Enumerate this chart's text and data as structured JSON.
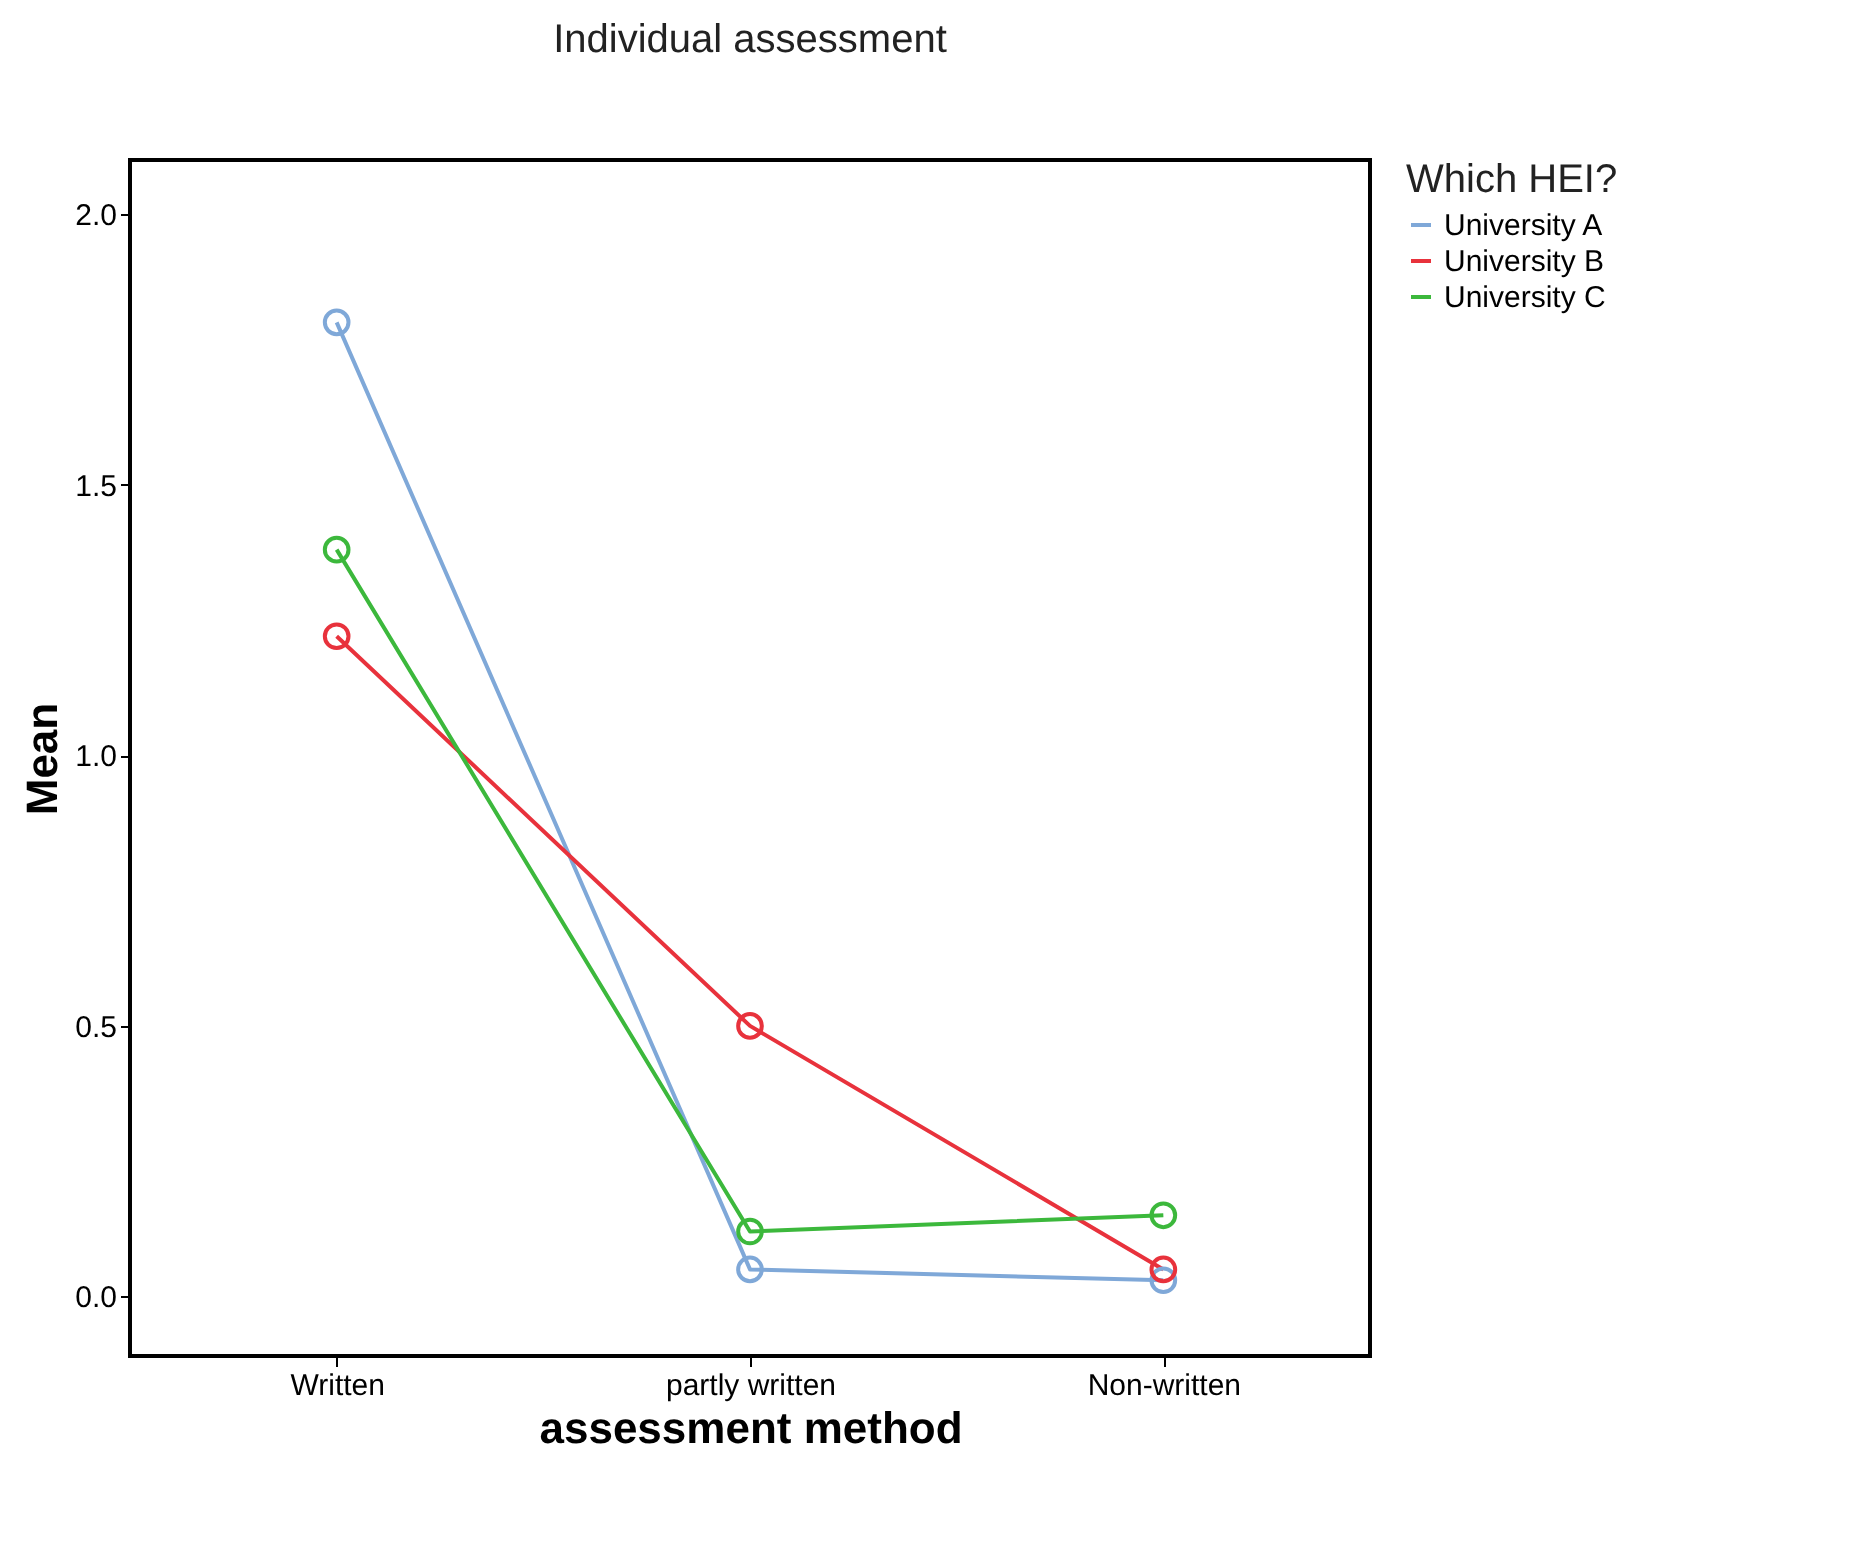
{
  "chart_data": {
    "type": "line",
    "title": "Individual assessment",
    "xlabel": "assessment method",
    "ylabel": "Mean",
    "legend_title": "Which HEI?",
    "categories": [
      "Written",
      "partly written",
      "Non-written"
    ],
    "series": [
      {
        "name": "University A",
        "color": "#7fa8d8",
        "values": [
          1.8,
          0.05,
          0.03
        ]
      },
      {
        "name": "University B",
        "color": "#e8323c",
        "values": [
          1.22,
          0.5,
          0.05
        ]
      },
      {
        "name": "University C",
        "color": "#3cb83c",
        "values": [
          1.38,
          0.12,
          0.15
        ]
      }
    ],
    "ylim": [
      -0.11,
      2.1
    ],
    "yticks": [
      {
        "value": 0,
        "label": "0.0"
      },
      {
        "value": 0.5,
        "label": "0.5"
      },
      {
        "value": 1,
        "label": "1.0"
      },
      {
        "value": 1.5,
        "label": "1.5"
      },
      {
        "value": 2,
        "label": "2.0"
      }
    ],
    "grid": false,
    "legend": "top right",
    "marker": "circle",
    "line_style": "solid"
  }
}
